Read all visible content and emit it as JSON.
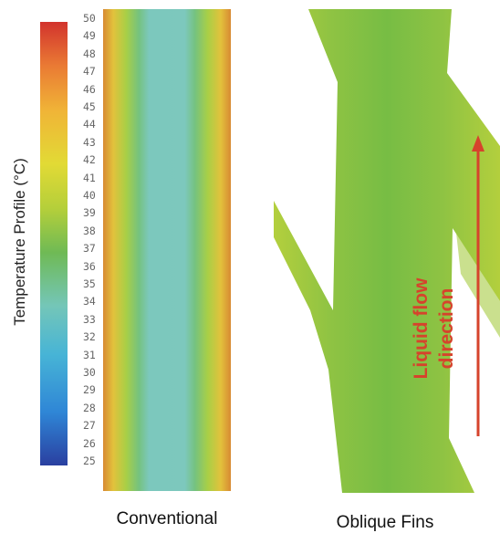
{
  "colorbar": {
    "title": "Temperature Profile (°C)",
    "min": 25,
    "max": 50,
    "ticks": [
      50,
      49,
      48,
      47,
      46,
      45,
      44,
      43,
      42,
      41,
      40,
      39,
      38,
      37,
      36,
      35,
      34,
      33,
      32,
      31,
      30,
      29,
      28,
      27,
      26,
      25
    ]
  },
  "panels": {
    "conventional": {
      "label": "Conventional"
    },
    "oblique": {
      "label": "Oblique Fins"
    }
  },
  "annotation": {
    "line1": "Liquid flow",
    "line2": "direction",
    "color": "#d6432c"
  }
}
